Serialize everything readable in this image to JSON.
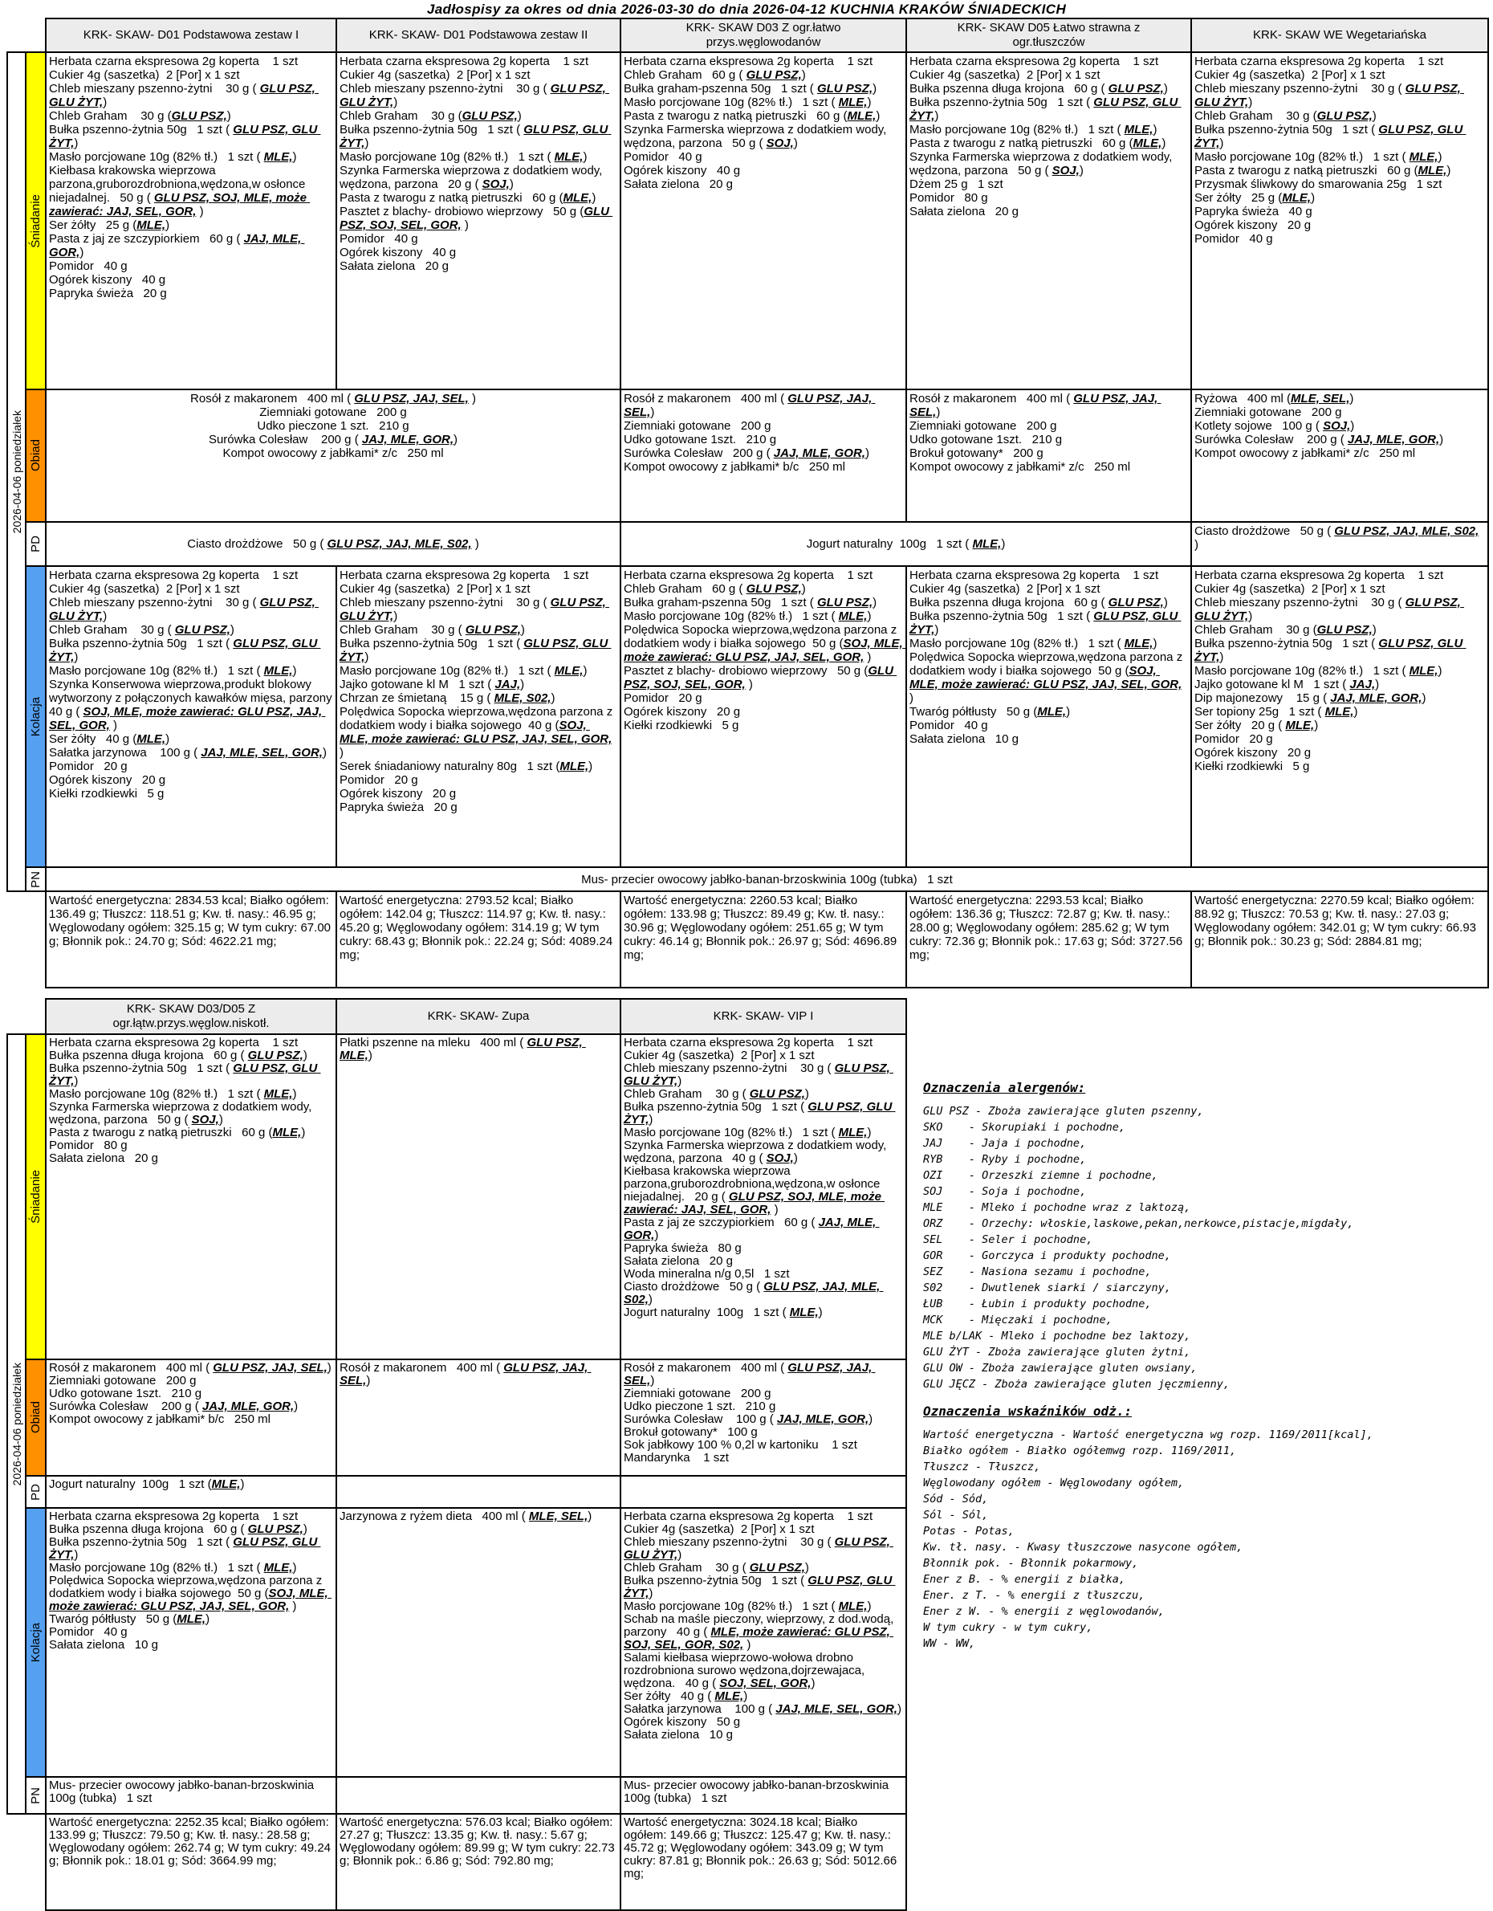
{
  "title": "Jadłospisy  za okres od dnia 2026-03-30 do dnia 2026-04-12 KUCHNIA KRAKÓW ŚNIADECKICH",
  "date_label": "2026-04-06 poniedziałek",
  "meals": {
    "breakfast": "Śniadanie",
    "lunch": "Obiad",
    "pd": "PD",
    "dinner": "Kolacja",
    "pn": "PN"
  },
  "colors": {
    "breakfast_bg": "#FFFF00",
    "lunch_bg": "#FF9000",
    "dinner_bg": "#55A0F0",
    "header_bg": "#ECECEC",
    "border": "#000000"
  },
  "table1": {
    "headers": [
      "KRK- SKAW- D01 Podstawowa zestaw I",
      "KRK- SKAW- D01 Podstawowa zestaw II",
      "KRK- SKAW D03 Z ogr.łatwo\nprzys.węglowodanów",
      "KRK- SKAW D05 Łatwo strawna z\nogr.tłuszczów",
      "KRK- SKAW WE Wegetariańska"
    ],
    "breakfast": [
      [
        "Herbata czarna ekspresowa 2g koperta    1 szt",
        "Cukier 4g (saszetka)  2 [Por] x 1 szt",
        "Chleb mieszany pszenno-żytni    30 g ( ⟦GLU PSZ, GLU ŻYT,⟧)",
        "Chleb Graham    30 g (⟦GLU PSZ,⟧)",
        "Bułka pszenno-żytnia 50g   1 szt ( ⟦GLU PSZ, GLU ŻYT,⟧)",
        "Masło porcjowane 10g (82% tł.)   1 szt ( ⟦MLE,⟧)",
        "Kiełbasa krakowska wieprzowa parzona,gruborozdrobniona,wędzona,w osłonce niejadalnej.   50 g ( ⟦GLU PSZ, SOJ, MLE, może zawierać: JAJ, SEL, GOR,⟧ )",
        "Ser żółty   25 g (⟦MLE,⟧)",
        "Pasta z jaj ze szczypiorkiem   60 g ( ⟦JAJ, MLE, GOR,⟧)",
        "Pomidor   40 g",
        "Ogórek kiszony   40 g",
        "Papryka świeża   20 g"
      ],
      [
        "Herbata czarna ekspresowa 2g koperta    1 szt",
        "Cukier 4g (saszetka)  2 [Por] x 1 szt",
        "Chleb mieszany pszenno-żytni    30 g ( ⟦GLU PSZ, GLU ŻYT,⟧)",
        "Chleb Graham    30 g (⟦GLU PSZ,⟧)",
        "Bułka pszenno-żytnia 50g   1 szt ( ⟦GLU PSZ, GLU ŻYT,⟧)",
        "Masło porcjowane 10g (82% tł.)   1 szt ( ⟦MLE,⟧)",
        "Szynka Farmerska wieprzowa z dodatkiem wody, wędzona, parzona   20 g ( ⟦SOJ,⟧)",
        "Pasta z twarogu z natką pietruszki   60 g (⟦MLE,⟧)",
        "Pasztet z blachy- drobiowo wieprzowy   50 g (⟦GLU PSZ, SOJ, SEL, GOR,⟧ )",
        "Pomidor   40 g",
        "Ogórek kiszony   40 g",
        "Sałata zielona   20 g"
      ],
      [
        "Herbata czarna ekspresowa 2g koperta    1 szt",
        "Chleb Graham   60 g ( ⟦GLU PSZ,⟧)",
        "Bułka graham-pszenna 50g   1 szt ( ⟦GLU PSZ,⟧)",
        "Masło porcjowane 10g (82% tł.)   1 szt ( ⟦MLE,⟧)",
        "Pasta z twarogu z natką pietruszki   60 g (⟦MLE,⟧)",
        "Szynka Farmerska wieprzowa z dodatkiem wody, wędzona, parzona   50 g ( ⟦SOJ,⟧)",
        "Pomidor   40 g",
        "Ogórek kiszony   40 g",
        "Sałata zielona   20 g"
      ],
      [
        "Herbata czarna ekspresowa 2g koperta    1 szt",
        "Cukier 4g (saszetka)  2 [Por] x 1 szt",
        "Bułka pszenna długa krojona   60 g ( ⟦GLU PSZ,⟧)",
        "Bułka pszenno-żytnia 50g   1 szt ( ⟦GLU PSZ, GLU ŻYT,⟧)",
        "Masło porcjowane 10g (82% tł.)   1 szt ( ⟦MLE,⟧)",
        "Pasta z twarogu z natką pietruszki   60 g (⟦MLE,⟧)",
        "Szynka Farmerska wieprzowa z dodatkiem wody, wędzona, parzona   50 g ( ⟦SOJ,⟧)",
        "Dżem 25 g   1 szt",
        "Pomidor   80 g",
        "Sałata zielona   20 g"
      ],
      [
        "Herbata czarna ekspresowa 2g koperta    1 szt",
        "Cukier 4g (saszetka)  2 [Por] x 1 szt",
        "Chleb mieszany pszenno-żytni    30 g ( ⟦GLU PSZ, GLU ŻYT,⟧)",
        "Chleb Graham    30 g (⟦GLU PSZ,⟧)",
        "Bułka pszenno-żytnia 50g   1 szt ( ⟦GLU PSZ, GLU ŻYT,⟧)",
        "Masło porcjowane 10g (82% tł.)   1 szt ( ⟦MLE,⟧)",
        "Pasta z twarogu z natką pietruszki   60 g (⟦MLE,⟧)",
        "Przysmak śliwkowy do smarowania 25g   1 szt",
        "Ser żółty   25 g (⟦MLE,⟧)",
        "Papryka świeża   40 g",
        "Ogórek kiszony   20 g",
        "Pomidor   40 g"
      ]
    ],
    "lunch_d01": [
      "Rosół z makaronem   400 ml ( ⟦GLU PSZ, JAJ, SEL,⟧ )",
      "Ziemniaki gotowane   200 g",
      "Udko pieczone 1 szt.   210 g",
      "Surówka Colesław    200 g ( ⟦JAJ, MLE, GOR,⟧)",
      "Kompot owocowy z jabłkami* z/c   250 ml"
    ],
    "lunch_d03": [
      "Rosół z makaronem   400 ml ( ⟦GLU PSZ, JAJ, SEL,⟧)",
      "Ziemniaki gotowane   200 g",
      "Udko gotowane 1szt.   210 g",
      "Surówka Colesław   200 g ( ⟦JAJ, MLE, GOR,⟧)",
      "Kompot owocowy z jabłkami* b/c   250 ml"
    ],
    "lunch_d05": [
      "Rosół z makaronem   400 ml ( ⟦GLU PSZ, JAJ, SEL,⟧)",
      "Ziemniaki gotowane   200 g",
      "Udko gotowane 1szt.   210 g",
      "Brokuł gotowany*   200 g",
      "Kompot owocowy z jabłkami* z/c   250 ml"
    ],
    "lunch_we": [
      "Ryżowa   400 ml (⟦MLE, SEL,⟧)",
      "Ziemniaki gotowane   200 g",
      "Kotlety sojowe   100 g ( ⟦SOJ,⟧)",
      "Surówka Colesław    200 g ( ⟦JAJ, MLE, GOR,⟧)",
      "Kompot owocowy z jabłkami* z/c   250 ml"
    ],
    "pd_d01": [
      "Ciasto drożdżowe   50 g ( ⟦GLU PSZ, JAJ, MLE, S02,⟧ )"
    ],
    "pd_d03_d05": [
      "Jogurt naturalny  100g   1 szt ( ⟦MLE,⟧)"
    ],
    "pd_we": [
      "Ciasto drożdżowe   50 g ( ⟦GLU PSZ, JAJ, MLE, S02,⟧ )"
    ],
    "dinner": [
      [
        "Herbata czarna ekspresowa 2g koperta    1 szt",
        "Cukier 4g (saszetka)  2 [Por] x 1 szt",
        "Chleb mieszany pszenno-żytni    30 g ( ⟦GLU PSZ, GLU ŻYT,⟧)",
        "Chleb Graham    30 g ( ⟦GLU PSZ,⟧)",
        "Bułka pszenno-żytnia 50g   1 szt ( ⟦GLU PSZ, GLU ŻYT,⟧)",
        "Masło porcjowane 10g (82% tł.)   1 szt ( ⟦MLE,⟧)",
        "Szynka Konserwowa wieprzowa,produkt blokowy wytworzony z połączonych kawałków mięsa, parzony   40 g ( ⟦SOJ, MLE, może zawierać: GLU PSZ, JAJ, SEL, GOR,⟧ )",
        "Ser żółty   40 g (⟦MLE,⟧)",
        "Sałatka jarzynowa    100 g ( ⟦JAJ, MLE, SEL, GOR,⟧)",
        "Pomidor   20 g",
        "Ogórek kiszony   20 g",
        "Kiełki rzodkiewki   5 g"
      ],
      [
        "Herbata czarna ekspresowa 2g koperta    1 szt",
        "Cukier 4g (saszetka)  2 [Por] x 1 szt",
        "Chleb mieszany pszenno-żytni    30 g ( ⟦GLU PSZ, GLU ŻYT,⟧)",
        "Chleb Graham    30 g ( ⟦GLU PSZ,⟧)",
        "Bułka pszenno-żytnia 50g   1 szt ( ⟦GLU PSZ, GLU ŻYT,⟧)",
        "Masło porcjowane 10g (82% tł.)   1 szt ( ⟦MLE,⟧)",
        "Jajko gotowane kl M   1 szt ( ⟦JAJ,⟧)",
        "Chrzan ze śmietaną    15 g ( ⟦MLE, S02,⟧)",
        "Polędwica Sopocka wieprzowa,wędzona parzona z dodatkiem wody i białka sojowego  40 g (⟦SOJ, MLE, może zawierać: GLU PSZ, JAJ, SEL, GOR,⟧ )",
        "Serek śniadaniowy naturalny 80g   1 szt (⟦MLE,⟧)",
        "Pomidor   20 g",
        "Ogórek kiszony   20 g",
        "Papryka świeża   20 g"
      ],
      [
        "Herbata czarna ekspresowa 2g koperta    1 szt",
        "Chleb Graham   60 g ( ⟦GLU PSZ,⟧)",
        "Bułka graham-pszenna 50g   1 szt ( ⟦GLU PSZ,⟧)",
        "Masło porcjowane 10g (82% tł.)   1 szt ( ⟦MLE,⟧)",
        "Polędwica Sopocka wieprzowa,wędzona parzona z dodatkiem wody i białka sojowego  50 g (⟦SOJ, MLE, może zawierać: GLU PSZ, JAJ, SEL, GOR,⟧ )",
        "Pasztet z blachy- drobiowo wieprzowy   50 g (⟦GLU PSZ, SOJ, SEL, GOR,⟧ )",
        "Pomidor   20 g",
        "Ogórek kiszony   20 g",
        "Kiełki rzodkiewki   5 g"
      ],
      [
        "Herbata czarna ekspresowa 2g koperta    1 szt",
        "Cukier 4g (saszetka)  2 [Por] x 1 szt",
        "Bułka pszenna długa krojona   60 g ( ⟦GLU PSZ,⟧)",
        "Bułka pszenno-żytnia 50g   1 szt ( ⟦GLU PSZ, GLU ŻYT,⟧)",
        "Masło porcjowane 10g (82% tł.)   1 szt ( ⟦MLE,⟧)",
        "Polędwica Sopocka wieprzowa,wędzona parzona z dodatkiem wody i białka sojowego  50 g (⟦SOJ, MLE, może zawierać: GLU PSZ, JAJ, SEL, GOR,⟧ )",
        "Twaróg półtłusty   50 g (⟦MLE,⟧)",
        "Pomidor   40 g",
        "Sałata zielona   10 g"
      ],
      [
        "Herbata czarna ekspresowa 2g koperta    1 szt",
        "Cukier 4g (saszetka)  2 [Por] x 1 szt",
        "Chleb mieszany pszenno-żytni    30 g ( ⟦GLU PSZ, GLU ŻYT,⟧)",
        "Chleb Graham    30 g (⟦GLU PSZ,⟧)",
        "Bułka pszenno-żytnia 50g   1 szt ( ⟦GLU PSZ, GLU ŻYT,⟧)",
        "Masło porcjowane 10g (82% tł.)   1 szt ( ⟦MLE,⟧)",
        "Jajko gotowane kl M   1 szt ( ⟦JAJ,⟧)",
        "Dip majonezowy    15 g ( ⟦JAJ, MLE, GOR,⟧)",
        "Ser topiony 25g   1 szt ( ⟦MLE,⟧)",
        "Ser żółty   20 g ( ⟦MLE,⟧)",
        "Pomidor   20 g",
        "Ogórek kiszony   20 g",
        "Kiełki rzodkiewki   5 g"
      ]
    ],
    "pn": [
      "Mus- przecier owocowy jabłko-banan-brzoskwinia 100g (tubka)   1 szt"
    ],
    "nutrition": [
      "Wartość energetyczna: 2834.53 kcal; Białko ogółem: 136.49 g; Tłuszcz: 118.51 g; Kw. tł. nasy.: 46.95 g; Węglowodany ogółem: 325.15 g; W tym cukry: 67.00 g; Błonnik pok.: 24.70 g; Sód: 4622.21 mg;",
      "Wartość energetyczna: 2793.52 kcal; Białko ogółem: 142.04 g; Tłuszcz: 114.97 g; Kw. tł. nasy.: 45.20 g; Węglowodany ogółem: 314.19 g; W tym cukry: 68.43 g; Błonnik pok.: 22.24 g; Sód: 4089.24 mg;",
      "Wartość energetyczna: 2260.53 kcal; Białko ogółem: 133.98 g; Tłuszcz: 89.49 g; Kw. tł. nasy.: 30.96 g; Węglowodany ogółem: 251.65 g; W tym cukry: 46.14 g; Błonnik pok.: 26.97 g; Sód: 4696.89 mg;",
      "Wartość energetyczna: 2293.53 kcal; Białko ogółem: 136.36 g; Tłuszcz: 72.87 g; Kw. tł. nasy.: 28.00 g; Węglowodany ogółem: 285.62 g; W tym cukry: 72.36 g; Błonnik pok.: 17.63 g; Sód: 3727.56 mg;",
      "Wartość energetyczna: 2270.59 kcal; Białko ogółem: 88.92 g; Tłuszcz: 70.53 g; Kw. tł. nasy.: 27.03 g; Węglowodany ogółem: 342.01 g; W tym cukry: 66.93 g; Błonnik pok.: 30.23 g; Sód: 2884.81 mg;"
    ]
  },
  "table2": {
    "headers": [
      "KRK- SKAW D03/D05 Z\nogr.łątw.przys.węglow.niskotł.",
      "KRK- SKAW- Zupa",
      "KRK- SKAW- VIP I"
    ],
    "breakfast": [
      [
        "Herbata czarna ekspresowa 2g koperta    1 szt",
        "Bułka pszenna długa krojona   60 g ( ⟦GLU PSZ,⟧)",
        "Bułka pszenno-żytnia 50g   1 szt ( ⟦GLU PSZ, GLU ŻYT,⟧)",
        "Masło porcjowane 10g (82% tł.)   1 szt ( ⟦MLE,⟧)",
        "Szynka Farmerska wieprzowa z dodatkiem wody, wędzona, parzona   50 g ( ⟦SOJ,⟧)",
        "Pasta z twarogu z natką pietruszki   60 g (⟦MLE,⟧)",
        "Pomidor   80 g",
        "Sałata zielona   20 g"
      ],
      [
        "Płatki pszenne na mleku   400 ml ( ⟦GLU PSZ, MLE,⟧)"
      ],
      [
        "Herbata czarna ekspresowa 2g koperta    1 szt",
        "Cukier 4g (saszetka)  2 [Por] x 1 szt",
        "Chleb mieszany pszenno-żytni    30 g ( ⟦GLU PSZ, GLU ŻYT,⟧)",
        "Chleb Graham    30 g ( ⟦GLU PSZ,⟧)",
        "Bułka pszenno-żytnia 50g   1 szt ( ⟦GLU PSZ, GLU ŻYT,⟧)",
        "Masło porcjowane 10g (82% tł.)   1 szt ( ⟦MLE,⟧)",
        "Szynka Farmerska wieprzowa z dodatkiem wody, wędzona, parzona   40 g ( ⟦SOJ,⟧)",
        "Kiełbasa krakowska wieprzowa parzona,gruborozdrobniona,wędzona,w osłonce niejadalnej.   20 g ( ⟦GLU PSZ, SOJ, MLE, może zawierać: JAJ, SEL, GOR,⟧ )",
        "Pasta z jaj ze szczypiorkiem   60 g ( ⟦JAJ, MLE, GOR,⟧)",
        "Papryka świeża   80 g",
        "Sałata zielona   20 g",
        "Woda mineralna n/g 0,5l   1 szt",
        "Ciasto drożdżowe   50 g ( ⟦GLU PSZ, JAJ, MLE, S02,⟧)",
        "Jogurt naturalny  100g   1 szt ( ⟦MLE,⟧)"
      ]
    ],
    "lunch": [
      [
        "Rosół z makaronem   400 ml ( ⟦GLU PSZ, JAJ, SEL,⟧)",
        "Ziemniaki gotowane   200 g",
        "Udko gotowane 1szt.   210 g",
        "Surówka Colesław    200 g ( ⟦JAJ, MLE, GOR,⟧)",
        "Kompot owocowy z jabłkami* b/c   250 ml"
      ],
      [
        "Rosół z makaronem   400 ml ( ⟦GLU PSZ, JAJ, SEL,⟧)"
      ],
      [
        "Rosół z makaronem   400 ml ( ⟦GLU PSZ, JAJ, SEL,⟧)",
        "Ziemniaki gotowane   200 g",
        "Udko pieczone 1 szt.   210 g",
        "Surówka Colesław    100 g ( ⟦JAJ, MLE, GOR,⟧)",
        "Brokuł gotowany*   100 g",
        "Sok jabłkowy 100 % 0,2l w kartoniku    1 szt",
        "Mandarynka    1 szt"
      ]
    ],
    "pd": [
      [
        "Jogurt naturalny  100g   1 szt (⟦MLE,⟧)"
      ],
      [],
      []
    ],
    "dinner": [
      [
        "Herbata czarna ekspresowa 2g koperta    1 szt",
        "Bułka pszenna długa krojona   60 g ( ⟦GLU PSZ,⟧)",
        "Bułka pszenno-żytnia 50g   1 szt ( ⟦GLU PSZ, GLU ŻYT,⟧)",
        "Masło porcjowane 10g (82% tł.)   1 szt ( ⟦MLE,⟧)",
        "Polędwica Sopocka wieprzowa,wędzona parzona z dodatkiem wody i białka sojowego  50 g (⟦SOJ, MLE, może zawierać: GLU PSZ, JAJ, SEL, GOR,⟧ )",
        "Twaróg półtłusty   50 g (⟦MLE,⟧)",
        "Pomidor   40 g",
        "Sałata zielona   10 g"
      ],
      [
        "Jarzynowa z ryżem dieta   400 ml ( ⟦MLE, SEL,⟧)"
      ],
      [
        "Herbata czarna ekspresowa 2g koperta    1 szt",
        "Cukier 4g (saszetka)  2 [Por] x 1 szt",
        "Chleb mieszany pszenno-żytni    30 g ( ⟦GLU PSZ, GLU ŻYT,⟧)",
        "Chleb Graham    30 g ( ⟦GLU PSZ,⟧)",
        "Bułka pszenno-żytnia 50g   1 szt ( ⟦GLU PSZ, GLU ŻYT,⟧)",
        "Masło porcjowane 10g (82% tł.)   1 szt ( ⟦MLE,⟧)",
        "Schab na maśle pieczony, wieprzowy, z dod.wodą, parzony   40 g ( ⟦MLE, może zawierać: GLU PSZ, SOJ, SEL, GOR, S02,⟧ )",
        "Salami kiełbasa wieprzowo-wołowa drobno rozdrobniona surowo wędzona,dojrzewajaca, wędzona.   40 g ( ⟦SOJ, SEL, GOR,⟧)",
        "Ser żółty   40 g ( ⟦MLE,⟧)",
        "Sałatka jarzynowa    100 g ( ⟦JAJ, MLE, SEL, GOR,⟧)",
        "Ogórek kiszony   50 g",
        "Sałata zielona   10 g"
      ]
    ],
    "pn": [
      [
        "Mus- przecier owocowy jabłko-banan-brzoskwinia 100g (tubka)   1 szt"
      ],
      [],
      [
        "Mus- przecier owocowy jabłko-banan-brzoskwinia 100g (tubka)   1 szt"
      ]
    ],
    "nutrition": [
      "Wartość energetyczna: 2252.35 kcal; Białko ogółem: 133.99 g; Tłuszcz: 79.50 g; Kw. tł. nasy.: 28.58 g; Węglowodany ogółem: 262.74 g; W tym cukry: 49.24 g; Błonnik pok.: 18.01 g; Sód: 3664.99 mg;",
      "Wartość energetyczna: 576.03 kcal; Białko ogółem: 27.27 g; Tłuszcz: 13.35 g; Kw. tł. nasy.: 5.67 g; Węglowodany ogółem: 89.99 g; W tym cukry: 22.73 g; Błonnik pok.: 6.86 g; Sód: 792.80 mg;",
      "Wartość energetyczna: 3024.18 kcal; Białko ogółem: 149.66 g; Tłuszcz: 125.47 g; Kw. tł. nasy.: 45.72 g; Węglowodany ogółem: 343.09 g; W tym cukry: 87.81 g; Błonnik pok.: 26.63 g; Sód: 5012.66 mg;"
    ]
  },
  "legend": {
    "allergens_title": "Oznaczenia alergenów:",
    "allergens": [
      "GLU PSZ - Zboża zawierające gluten pszenny,",
      "SKO    - Skorupiaki i pochodne,",
      "JAJ    - Jaja i pochodne,",
      "RYB    - Ryby i pochodne,",
      "OZI    - Orzeszki ziemne i pochodne,",
      "SOJ    - Soja i pochodne,",
      "MLE    - Mleko i pochodne wraz z laktozą,",
      "ORZ    - Orzechy: włoskie,laskowe,pekan,nerkowce,pistacje,migdały,",
      "SEL    - Seler i pochodne,",
      "GOR    - Gorczyca i produkty pochodne,",
      "SEZ    - Nasiona sezamu i pochodne,",
      "S02    - Dwutlenek siarki / siarczyny,",
      "ŁUB    - Łubin i produkty pochodne,",
      "MCK    - Mięczaki i pochodne,",
      "MLE b/LAK - Mleko i pochodne bez laktozy,",
      "GLU ŻYT - Zboża zawierające gluten żytni,",
      "GLU OW - Zboża zawierające gluten owsiany,",
      "GLU JĘCZ - Zboża zawierające gluten jęczmienny,"
    ],
    "indicators_title": "Oznaczenia wskaźników odż.:",
    "indicators": [
      "Wartość energetyczna - Wartość energetyczna wg rozp. 1169/2011[kcal],",
      "Białko ogółem - Białko ogółemwg rozp. 1169/2011,",
      "Tłuszcz - Tłuszcz,",
      "Węglowodany ogółem - Węglowodany ogółem,",
      "Sód - Sód,",
      "Sól - Sól,",
      "Potas - Potas,",
      "Kw. tł. nasy. - Kwasy tłuszczowe nasycone ogółem,",
      "Błonnik pok. - Błonnik pokarmowy,",
      "Ener z B. - % energii z białka,",
      "Ener. z T. - % energii z tłuszczu,",
      "Ener z W. - % energii z węglowodanów,",
      "W tym cukry - w tym cukry,",
      "WW - WW,"
    ]
  }
}
